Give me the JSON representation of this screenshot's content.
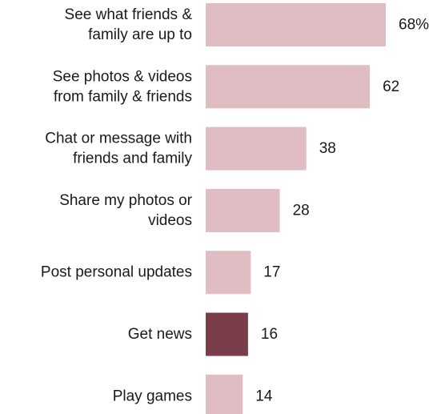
{
  "chart_data": {
    "type": "bar",
    "orientation": "horizontal",
    "categories": [
      [
        "See what friends &",
        "family are up to"
      ],
      [
        "See photos & videos",
        "from family & friends"
      ],
      [
        "Chat or message with",
        "friends and family"
      ],
      [
        "Share my photos or",
        "videos"
      ],
      [
        "Post personal updates"
      ],
      [
        "Get news"
      ],
      [
        "Play games"
      ]
    ],
    "values": [
      68,
      62,
      38,
      28,
      17,
      16,
      14
    ],
    "value_labels": [
      "68%",
      "62",
      "38",
      "28",
      "17",
      "16",
      "14"
    ],
    "xlim": [
      0,
      68
    ],
    "highlight_index": 5,
    "colors": {
      "bar": "#dfbdc2",
      "highlight": "#7a3d4a"
    },
    "title": "",
    "xlabel": "",
    "ylabel": "",
    "grid": false,
    "legend": false
  }
}
